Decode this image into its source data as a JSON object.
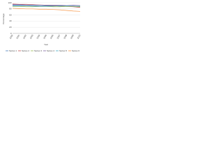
{
  "chart_data": {
    "type": "line",
    "y_label": "Percentage",
    "x_label": "Year",
    "categories": [
      "2000",
      "2001",
      "2002",
      "2003",
      "2004",
      "2005",
      "2006",
      "2007",
      "2008",
      "2009",
      "2010"
    ],
    "series": [
      {
        "name": "Series 1",
        "color": "#4f81bd",
        "values": [
          92,
          92,
          91,
          91,
          90,
          90,
          90,
          89,
          89,
          88,
          88
        ]
      },
      {
        "name": "Series 2",
        "color": "#c0504d",
        "values": [
          96,
          95,
          95,
          94,
          93,
          92,
          91,
          90,
          88,
          87,
          85
        ]
      },
      {
        "name": "Series 3",
        "color": "#9bbb59",
        "values": [
          88,
          88,
          87,
          87,
          88,
          88,
          87,
          87,
          88,
          88,
          87
        ]
      },
      {
        "name": "Series 4",
        "color": "#8064a2",
        "values": [
          94,
          94,
          93,
          93,
          93,
          92,
          92,
          92,
          91,
          92,
          91
        ]
      },
      {
        "name": "Series 5",
        "color": "#4bacc6",
        "values": [
          90,
          90,
          90,
          89,
          89,
          89,
          89,
          90,
          90,
          89,
          89
        ]
      },
      {
        "name": "Series 6",
        "color": "#f79646",
        "values": [
          82,
          81,
          80,
          80,
          79,
          79,
          78,
          77,
          75,
          73,
          72
        ]
      }
    ],
    "ylim": [
      0,
      100
    ],
    "yticks": [
      0,
      20,
      40,
      60,
      80,
      100
    ],
    "grid": true
  }
}
